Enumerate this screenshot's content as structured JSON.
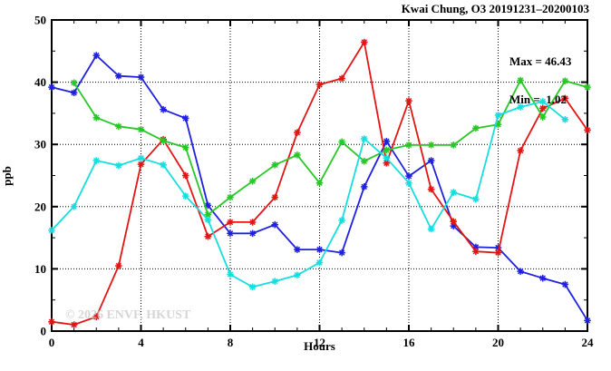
{
  "header": {
    "title": "Kwai Chung, O3 20191231–20200103"
  },
  "annotation": {
    "max_label": "Max = 46.43",
    "min_label": "Min =  1.02"
  },
  "watermark": "© 2026 ENVF, HKUST",
  "axes": {
    "xlabel": "Hours",
    "ylabel": "ppb"
  },
  "chart_data": {
    "type": "line",
    "title": "Kwai Chung, O3 20191231–20200103",
    "xlabel": "Hours",
    "ylabel": "ppb",
    "xlim": [
      0,
      24
    ],
    "ylim": [
      0,
      50
    ],
    "x_major_ticks": [
      0,
      4,
      8,
      12,
      16,
      20,
      24
    ],
    "x_minor_step": 1,
    "y_major_ticks": [
      0,
      10,
      20,
      30,
      40,
      50
    ],
    "y_minor_step": 5,
    "grid": true,
    "legend": "none",
    "max_value": 46.43,
    "min_value": 1.02,
    "x": [
      0,
      1,
      2,
      3,
      4,
      5,
      6,
      7,
      8,
      9,
      10,
      11,
      12,
      13,
      14,
      15,
      16,
      17,
      18,
      19,
      20,
      21,
      22,
      23,
      24
    ],
    "series": [
      {
        "name": "day-1-blue",
        "color": "#2020e0",
        "values": [
          39.2,
          38.3,
          44.3,
          41.0,
          40.8,
          35.6,
          34.2,
          20.2,
          15.7,
          15.7,
          17.1,
          13.1,
          13.1,
          12.6,
          23.2,
          30.5,
          24.9,
          27.4,
          16.9,
          13.5,
          13.4,
          9.6,
          8.5,
          7.5,
          1.7
        ]
      },
      {
        "name": "day-2-red",
        "color": "#e41414",
        "values": [
          1.5,
          1.02,
          2.3,
          10.5,
          26.8,
          30.8,
          25.0,
          15.2,
          17.5,
          17.5,
          21.5,
          31.9,
          39.6,
          40.6,
          46.43,
          27.0,
          37.0,
          22.8,
          17.6,
          12.8,
          12.6,
          29.0,
          35.8,
          37.4,
          32.3
        ]
      },
      {
        "name": "day-3-green",
        "color": "#25c825",
        "values": [
          null,
          39.9,
          34.3,
          32.9,
          32.4,
          30.6,
          29.5,
          18.7,
          21.5,
          24.1,
          26.7,
          28.3,
          23.8,
          30.4,
          27.3,
          29.1,
          29.9,
          29.9,
          29.9,
          32.6,
          33.2,
          40.3,
          34.4,
          40.2,
          39.2
        ]
      },
      {
        "name": "day-4-cyan",
        "color": "#17dede",
        "values": [
          16.2,
          20.0,
          27.4,
          26.6,
          27.8,
          26.7,
          21.7,
          17.9,
          9.1,
          7.1,
          8.0,
          9.0,
          11.0,
          17.8,
          30.9,
          27.8,
          23.8,
          16.4,
          22.3,
          21.2,
          34.7,
          36.0,
          36.9,
          34.0,
          null
        ]
      }
    ]
  },
  "colors": {
    "frame": "#000000",
    "grid": "#000000",
    "tick_label": "#000000"
  }
}
